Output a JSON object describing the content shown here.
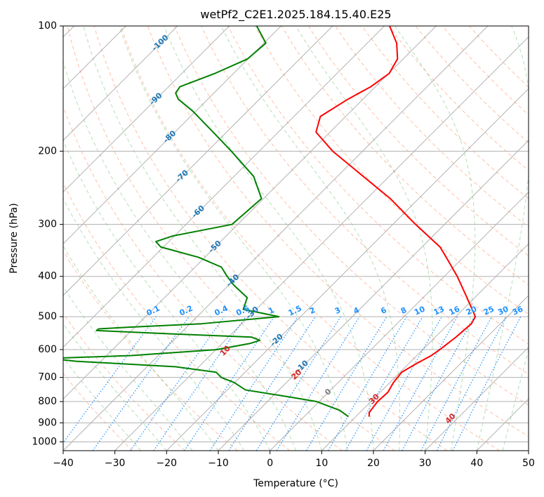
{
  "chart_data": {
    "type": "line",
    "subtype": "skew-t log-p",
    "title": "wetPf2_C2E1.2025.184.15.40.E25",
    "xlabel": "Temperature (°C)",
    "ylabel": "Pressure (hPa)",
    "xlim": [
      -40,
      50
    ],
    "ylim": [
      1050,
      100
    ],
    "y_scale": "log",
    "x_ticks": [
      -40,
      -30,
      -20,
      -10,
      0,
      10,
      20,
      30,
      40,
      50
    ],
    "x_tick_labels": [
      "−40",
      "−30",
      "−20",
      "−10",
      "0",
      "10",
      "20",
      "30",
      "40",
      "50"
    ],
    "y_ticks": [
      100,
      200,
      300,
      400,
      500,
      600,
      700,
      800,
      900,
      1000
    ],
    "y_tick_labels": [
      "100",
      "200",
      "300",
      "400",
      "500",
      "600",
      "700",
      "800",
      "900",
      "1000"
    ],
    "grid": true,
    "colors": {
      "temperature": "#ff0000",
      "dewpoint": "#008000",
      "isotherm": "#808080",
      "dry_adiabat": "#ff7f50",
      "moist_adiabat": "#2ca02c",
      "mixing_ratio": "#1e90ff",
      "isotherm_label": "#1f77b4",
      "theta_label": "#d62728"
    },
    "series": [
      {
        "key": "temperature",
        "pressure": [
          870,
          850,
          800,
          760,
          720,
          680,
          650,
          620,
          600,
          560,
          520,
          500,
          450,
          400,
          360,
          340,
          300,
          260,
          230,
          200,
          180,
          165,
          150,
          140,
          130,
          120,
          110,
          100
        ],
        "values": [
          12.6,
          11.8,
          11.3,
          11.5,
          10.7,
          10.3,
          11.4,
          12.8,
          13.3,
          14.0,
          14.4,
          13.8,
          8.5,
          2.5,
          -3.3,
          -6.5,
          -15.6,
          -25.5,
          -35.0,
          -45.8,
          -52.7,
          -54.9,
          -52.9,
          -50.9,
          -49.9,
          -51.1,
          -54.3,
          -59.0
        ]
      },
      {
        "key": "dewpoint",
        "pressure": [
          870,
          840,
          800,
          780,
          750,
          720,
          700,
          680,
          660,
          640,
          630,
          620,
          600,
          580,
          570,
          560,
          550,
          540,
          535,
          530,
          520,
          500,
          480,
          450,
          420,
          400,
          380,
          360,
          340,
          330,
          320,
          300,
          260,
          230,
          200,
          180,
          160,
          150,
          145,
          140,
          130,
          120,
          110,
          100
        ],
        "values": [
          8.6,
          5.7,
          -0.5,
          -6.6,
          -16.5,
          -20.1,
          -23.6,
          -25.6,
          -34.4,
          -54.8,
          -60.5,
          -45.2,
          -29.8,
          -24.6,
          -23.3,
          -25.5,
          -41.7,
          -56.8,
          -56.7,
          -51.2,
          -37.8,
          -24.2,
          -32.5,
          -34.0,
          -39.0,
          -42.0,
          -44.9,
          -51.2,
          -60.5,
          -62.5,
          -60.4,
          -51.1,
          -50.4,
          -56.2,
          -65.4,
          -72.6,
          -80.7,
          -85.7,
          -87.4,
          -87.8,
          -83.6,
          -80.1,
          -79.6,
          -84.7
        ]
      }
    ],
    "isotherm_labels": [
      "-100",
      "-90",
      "-80",
      "-70",
      "-60",
      "-50",
      "-40",
      "-30",
      "-20",
      "-10",
      "0"
    ],
    "mixing_ratio_labels": [
      "0.1",
      "0.2",
      "0.4",
      "0.6",
      "1",
      "1.5",
      "2",
      "3",
      "4",
      "6",
      "8",
      "10",
      "13",
      "16",
      "20",
      "25",
      "30",
      "36"
    ],
    "theta_labels": [
      "10",
      "20",
      "30",
      "40"
    ]
  }
}
